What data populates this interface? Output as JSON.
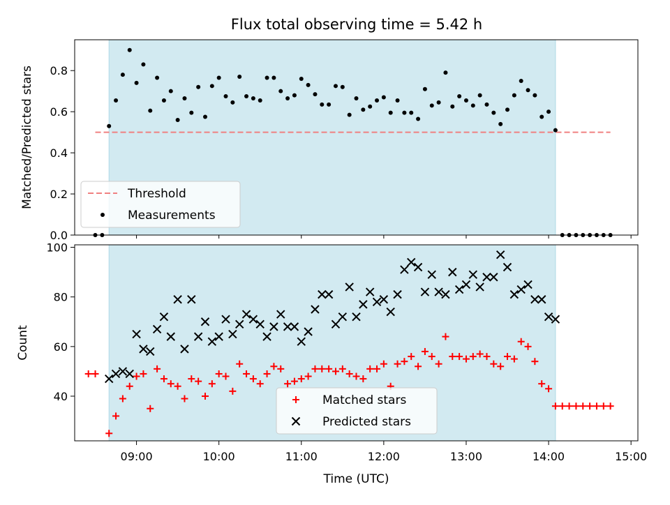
{
  "title": "Flux total observing time = 5.42 h",
  "colors": {
    "band": "#add8e6",
    "threshold": "#f08080",
    "measurement": "#000000",
    "matched": "#ff0000",
    "predicted": "#000000"
  },
  "chart_data": [
    {
      "type": "scatter",
      "panel": "top",
      "ylabel": "Matched/Predicted stars",
      "ylim": [
        0,
        0.95
      ],
      "yticks": [
        0.0,
        0.2,
        0.4,
        0.6,
        0.8
      ],
      "ytick_labels": [
        "0.0",
        "0.2",
        "0.4",
        "0.6",
        "0.8"
      ],
      "shaded_interval": [
        "08:40",
        "14:05"
      ],
      "threshold": {
        "label": "Threshold",
        "value": 0.5,
        "x_range": [
          "08:30",
          "14:45"
        ]
      },
      "legend": {
        "position": "lower-left",
        "entries": [
          "Threshold",
          "Measurements"
        ]
      },
      "series": [
        {
          "name": "Measurements",
          "x": [
            "08:30",
            "08:35",
            "08:40",
            "08:45",
            "08:50",
            "08:55",
            "09:00",
            "09:05",
            "09:10",
            "09:15",
            "09:20",
            "09:25",
            "09:30",
            "09:35",
            "09:40",
            "09:45",
            "09:50",
            "09:55",
            "10:00",
            "10:05",
            "10:10",
            "10:15",
            "10:20",
            "10:25",
            "10:30",
            "10:35",
            "10:40",
            "10:45",
            "10:50",
            "10:55",
            "11:00",
            "11:05",
            "11:10",
            "11:15",
            "11:20",
            "11:25",
            "11:30",
            "11:35",
            "11:40",
            "11:45",
            "11:50",
            "11:55",
            "12:00",
            "12:05",
            "12:10",
            "12:15",
            "12:20",
            "12:25",
            "12:30",
            "12:35",
            "12:40",
            "12:45",
            "12:50",
            "12:55",
            "13:00",
            "13:05",
            "13:10",
            "13:15",
            "13:20",
            "13:25",
            "13:30",
            "13:35",
            "13:40",
            "13:45",
            "13:50",
            "13:55",
            "14:00",
            "14:05",
            "14:10",
            "14:15",
            "14:20",
            "14:25",
            "14:30",
            "14:35",
            "14:40",
            "14:45"
          ],
          "y": [
            0,
            0,
            0.53,
            0.655,
            0.78,
            0.9,
            0.74,
            0.83,
            0.605,
            0.765,
            0.655,
            0.7,
            0.56,
            0.665,
            0.595,
            0.72,
            0.575,
            0.725,
            0.765,
            0.675,
            0.645,
            0.77,
            0.675,
            0.665,
            0.655,
            0.765,
            0.765,
            0.7,
            0.665,
            0.68,
            0.76,
            0.73,
            0.685,
            0.635,
            0.635,
            0.725,
            0.72,
            0.585,
            0.665,
            0.61,
            0.625,
            0.655,
            0.67,
            0.595,
            0.655,
            0.595,
            0.595,
            0.565,
            0.71,
            0.63,
            0.645,
            0.79,
            0.625,
            0.675,
            0.655,
            0.63,
            0.68,
            0.635,
            0.595,
            0.54,
            0.61,
            0.68,
            0.75,
            0.705,
            0.68,
            0.575,
            0.6,
            0.51,
            0,
            0,
            0,
            0,
            0,
            0,
            0,
            0
          ]
        }
      ]
    },
    {
      "type": "scatter",
      "panel": "bottom",
      "xlabel": "Time (UTC)",
      "ylabel": "Count",
      "xlim": [
        "08:15",
        "15:05"
      ],
      "ylim": [
        22,
        101
      ],
      "xticks": [
        "09:00",
        "10:00",
        "11:00",
        "12:00",
        "13:00",
        "14:00",
        "15:00"
      ],
      "yticks": [
        40,
        60,
        80,
        100
      ],
      "ytick_labels": [
        "40",
        "60",
        "80",
        "100"
      ],
      "shaded_interval": [
        "08:40",
        "14:05"
      ],
      "legend": {
        "position": "lower-center",
        "entries": [
          "Matched stars",
          "Predicted stars"
        ]
      },
      "series": [
        {
          "name": "Matched stars",
          "marker": "+",
          "x": [
            "08:25",
            "08:30",
            "08:40",
            "08:45",
            "08:50",
            "08:55",
            "09:00",
            "09:05",
            "09:10",
            "09:15",
            "09:20",
            "09:25",
            "09:30",
            "09:35",
            "09:40",
            "09:45",
            "09:50",
            "09:55",
            "10:00",
            "10:05",
            "10:10",
            "10:15",
            "10:20",
            "10:25",
            "10:30",
            "10:35",
            "10:40",
            "10:45",
            "10:50",
            "10:55",
            "11:00",
            "11:05",
            "11:10",
            "11:15",
            "11:20",
            "11:25",
            "11:30",
            "11:35",
            "11:40",
            "11:45",
            "11:50",
            "11:55",
            "12:00",
            "12:05",
            "12:10",
            "12:15",
            "12:20",
            "12:25",
            "12:30",
            "12:35",
            "12:40",
            "12:45",
            "12:50",
            "12:55",
            "13:00",
            "13:05",
            "13:10",
            "13:15",
            "13:20",
            "13:25",
            "13:30",
            "13:35",
            "13:40",
            "13:45",
            "13:50",
            "13:55",
            "14:00",
            "14:05",
            "14:10",
            "14:15",
            "14:20",
            "14:25",
            "14:30",
            "14:35",
            "14:40",
            "14:45"
          ],
          "y": [
            49,
            49,
            25,
            32,
            39,
            44,
            48,
            49,
            35,
            51,
            47,
            45,
            44,
            39,
            47,
            46,
            40,
            45,
            49,
            48,
            42,
            53,
            49,
            47,
            45,
            49,
            52,
            51,
            45,
            46,
            47,
            48,
            51,
            51,
            51,
            50,
            51,
            49,
            48,
            47,
            51,
            51,
            53,
            44,
            53,
            54,
            56,
            52,
            58,
            56,
            53,
            64,
            56,
            56,
            55,
            56,
            57,
            56,
            53,
            52,
            56,
            55,
            62,
            60,
            54,
            45,
            43,
            36,
            36,
            36,
            36,
            36,
            36,
            36,
            36,
            36
          ]
        },
        {
          "name": "Predicted stars",
          "marker": "x",
          "x": [
            "08:40",
            "08:45",
            "08:50",
            "08:55",
            "09:00",
            "09:05",
            "09:10",
            "09:15",
            "09:20",
            "09:25",
            "09:30",
            "09:35",
            "09:40",
            "09:45",
            "09:50",
            "09:55",
            "10:00",
            "10:05",
            "10:10",
            "10:15",
            "10:20",
            "10:25",
            "10:30",
            "10:35",
            "10:40",
            "10:45",
            "10:50",
            "10:55",
            "11:00",
            "11:05",
            "11:10",
            "11:15",
            "11:20",
            "11:25",
            "11:30",
            "11:35",
            "11:40",
            "11:45",
            "11:50",
            "11:55",
            "12:00",
            "12:05",
            "12:10",
            "12:15",
            "12:20",
            "12:25",
            "12:30",
            "12:35",
            "12:40",
            "12:45",
            "12:50",
            "12:55",
            "13:00",
            "13:05",
            "13:10",
            "13:15",
            "13:20",
            "13:25",
            "13:30",
            "13:35",
            "13:40",
            "13:45",
            "13:50",
            "13:55",
            "14:00",
            "14:05"
          ],
          "y": [
            47,
            49,
            50,
            49,
            65,
            59,
            58,
            67,
            72,
            64,
            79,
            59,
            79,
            64,
            70,
            62,
            64,
            71,
            65,
            69,
            73,
            71,
            69,
            64,
            68,
            73,
            68,
            68,
            62,
            66,
            75,
            81,
            81,
            69,
            72,
            84,
            72,
            77,
            82,
            78,
            79,
            74,
            81,
            91,
            94,
            92,
            82,
            89,
            82,
            81,
            90,
            83,
            85,
            89,
            84,
            88,
            88,
            97,
            92,
            81,
            83,
            85,
            79,
            79,
            72,
            71
          ]
        }
      ]
    }
  ]
}
